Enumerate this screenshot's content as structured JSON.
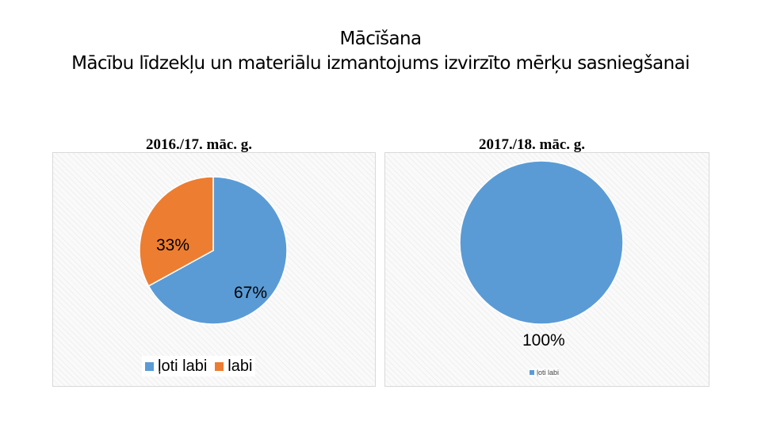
{
  "title": {
    "line1": "Mācīšana",
    "line2": "Mācību līdzekļu un materiālu izmantojums izvirzīto mērķu sasniegšanai"
  },
  "colors": {
    "loti_labi": "#5b9bd5",
    "labi": "#ed7d31"
  },
  "chart_data": [
    {
      "type": "pie",
      "title": "2016./17. māc. g.",
      "categories": [
        "ļoti labi",
        "labi"
      ],
      "values": [
        67,
        33
      ],
      "data_labels": [
        "67%",
        "33%"
      ],
      "legend": [
        "ļoti labi",
        "labi"
      ],
      "legend_position": "bottom"
    },
    {
      "type": "pie",
      "title": "2017./18. māc. g.",
      "categories": [
        "ļoti labi"
      ],
      "values": [
        100
      ],
      "data_labels": [
        "100%"
      ],
      "legend": [
        "ļoti labi"
      ],
      "legend_position": "bottom"
    }
  ]
}
